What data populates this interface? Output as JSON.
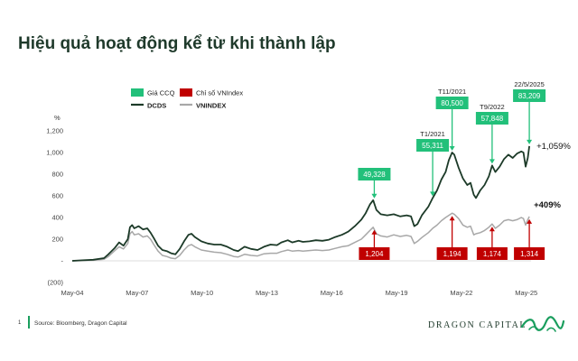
{
  "page": {
    "title": "Hiệu quả hoạt động kể từ khi thành lập",
    "footer_page": "1",
    "source": "Source: Bloomberg, Dragon Capital",
    "brand": "DRAGON CAPITAL"
  },
  "colors": {
    "dcds": "#1c3a28",
    "vnindex": "#a8a8a8",
    "green_box": "#22c07a",
    "red_box": "#c00000",
    "accent": "#1a9e5e"
  },
  "chart_data": {
    "type": "line",
    "ylabel": "%",
    "ylim": [
      -200,
      1200
    ],
    "yticks": [
      {
        "v": 1200,
        "label": "1,200"
      },
      {
        "v": 1000,
        "label": "1,000"
      },
      {
        "v": 800,
        "label": "800"
      },
      {
        "v": 600,
        "label": "600"
      },
      {
        "v": 400,
        "label": "400"
      },
      {
        "v": 200,
        "label": "200"
      },
      {
        "v": 0,
        "label": "-"
      },
      {
        "v": -200,
        "label": "(200)"
      }
    ],
    "xlim": [
      2004.33,
      2025.55
    ],
    "xticks": [
      {
        "v": 2004.33,
        "label": "May-04"
      },
      {
        "v": 2007.33,
        "label": "May-07"
      },
      {
        "v": 2010.33,
        "label": "May-10"
      },
      {
        "v": 2013.33,
        "label": "May-13"
      },
      {
        "v": 2016.33,
        "label": "May-16"
      },
      {
        "v": 2019.33,
        "label": "May-19"
      },
      {
        "v": 2022.33,
        "label": "May-22"
      },
      {
        "v": 2025.33,
        "label": "May-25"
      }
    ],
    "legend": [
      {
        "key": "green_box",
        "label": "Giá CCQ"
      },
      {
        "key": "red_box",
        "label": "Chỉ số VNIndex"
      },
      {
        "key": "dcds",
        "label": "DCDS"
      },
      {
        "key": "vnindex",
        "label": "VNINDEX"
      }
    ],
    "legend_position": "top-left",
    "series": [
      {
        "name": "DCDS",
        "key": "dcds",
        "points": [
          [
            2004.33,
            0
          ],
          [
            2004.8,
            5
          ],
          [
            2005.3,
            10
          ],
          [
            2005.8,
            25
          ],
          [
            2006.0,
            60
          ],
          [
            2006.3,
            120
          ],
          [
            2006.5,
            170
          ],
          [
            2006.7,
            140
          ],
          [
            2006.9,
            200
          ],
          [
            2007.0,
            310
          ],
          [
            2007.1,
            330
          ],
          [
            2007.2,
            300
          ],
          [
            2007.4,
            320
          ],
          [
            2007.6,
            290
          ],
          [
            2007.8,
            300
          ],
          [
            2007.95,
            260
          ],
          [
            2008.1,
            210
          ],
          [
            2008.3,
            140
          ],
          [
            2008.5,
            100
          ],
          [
            2008.7,
            90
          ],
          [
            2008.9,
            70
          ],
          [
            2009.1,
            60
          ],
          [
            2009.3,
            110
          ],
          [
            2009.5,
            180
          ],
          [
            2009.7,
            240
          ],
          [
            2009.85,
            250
          ],
          [
            2010.0,
            220
          ],
          [
            2010.3,
            180
          ],
          [
            2010.6,
            160
          ],
          [
            2010.9,
            150
          ],
          [
            2011.2,
            150
          ],
          [
            2011.5,
            130
          ],
          [
            2011.8,
            100
          ],
          [
            2012.0,
            90
          ],
          [
            2012.3,
            130
          ],
          [
            2012.6,
            110
          ],
          [
            2012.9,
            100
          ],
          [
            2013.2,
            130
          ],
          [
            2013.5,
            150
          ],
          [
            2013.8,
            145
          ],
          [
            2014.0,
            170
          ],
          [
            2014.3,
            190
          ],
          [
            2014.5,
            170
          ],
          [
            2014.8,
            185
          ],
          [
            2015.0,
            175
          ],
          [
            2015.3,
            180
          ],
          [
            2015.6,
            190
          ],
          [
            2015.9,
            185
          ],
          [
            2016.2,
            195
          ],
          [
            2016.5,
            220
          ],
          [
            2016.8,
            240
          ],
          [
            2017.1,
            270
          ],
          [
            2017.4,
            320
          ],
          [
            2017.7,
            380
          ],
          [
            2017.9,
            440
          ],
          [
            2018.1,
            520
          ],
          [
            2018.25,
            560
          ],
          [
            2018.4,
            470
          ],
          [
            2018.6,
            430
          ],
          [
            2018.9,
            420
          ],
          [
            2019.2,
            430
          ],
          [
            2019.5,
            410
          ],
          [
            2019.8,
            420
          ],
          [
            2020.0,
            410
          ],
          [
            2020.15,
            320
          ],
          [
            2020.3,
            340
          ],
          [
            2020.5,
            420
          ],
          [
            2020.8,
            500
          ],
          [
            2021.0,
            580
          ],
          [
            2021.2,
            650
          ],
          [
            2021.4,
            750
          ],
          [
            2021.6,
            820
          ],
          [
            2021.75,
            930
          ],
          [
            2021.9,
            1000
          ],
          [
            2022.0,
            980
          ],
          [
            2022.2,
            860
          ],
          [
            2022.4,
            760
          ],
          [
            2022.6,
            700
          ],
          [
            2022.75,
            720
          ],
          [
            2022.9,
            610
          ],
          [
            2023.0,
            580
          ],
          [
            2023.2,
            650
          ],
          [
            2023.4,
            700
          ],
          [
            2023.6,
            780
          ],
          [
            2023.75,
            880
          ],
          [
            2023.9,
            820
          ],
          [
            2024.1,
            870
          ],
          [
            2024.3,
            940
          ],
          [
            2024.5,
            980
          ],
          [
            2024.7,
            950
          ],
          [
            2024.9,
            990
          ],
          [
            2025.1,
            1010
          ],
          [
            2025.2,
            1000
          ],
          [
            2025.3,
            870
          ],
          [
            2025.4,
            950
          ],
          [
            2025.47,
            1059
          ]
        ]
      },
      {
        "name": "VNINDEX",
        "key": "vnindex",
        "points": [
          [
            2004.33,
            0
          ],
          [
            2004.8,
            2
          ],
          [
            2005.3,
            5
          ],
          [
            2005.8,
            15
          ],
          [
            2006.0,
            40
          ],
          [
            2006.3,
            95
          ],
          [
            2006.5,
            130
          ],
          [
            2006.7,
            110
          ],
          [
            2006.9,
            160
          ],
          [
            2007.0,
            250
          ],
          [
            2007.1,
            270
          ],
          [
            2007.2,
            240
          ],
          [
            2007.4,
            250
          ],
          [
            2007.6,
            220
          ],
          [
            2007.8,
            230
          ],
          [
            2007.95,
            200
          ],
          [
            2008.1,
            150
          ],
          [
            2008.3,
            90
          ],
          [
            2008.5,
            50
          ],
          [
            2008.7,
            40
          ],
          [
            2008.9,
            25
          ],
          [
            2009.1,
            20
          ],
          [
            2009.3,
            50
          ],
          [
            2009.5,
            100
          ],
          [
            2009.7,
            140
          ],
          [
            2009.85,
            150
          ],
          [
            2010.0,
            130
          ],
          [
            2010.3,
            100
          ],
          [
            2010.6,
            90
          ],
          [
            2010.9,
            80
          ],
          [
            2011.2,
            75
          ],
          [
            2011.5,
            60
          ],
          [
            2011.8,
            40
          ],
          [
            2012.0,
            35
          ],
          [
            2012.3,
            60
          ],
          [
            2012.6,
            50
          ],
          [
            2012.9,
            45
          ],
          [
            2013.2,
            65
          ],
          [
            2013.5,
            70
          ],
          [
            2013.8,
            70
          ],
          [
            2014.0,
            85
          ],
          [
            2014.3,
            100
          ],
          [
            2014.5,
            90
          ],
          [
            2014.8,
            95
          ],
          [
            2015.0,
            90
          ],
          [
            2015.3,
            95
          ],
          [
            2015.6,
            100
          ],
          [
            2015.9,
            95
          ],
          [
            2016.2,
            100
          ],
          [
            2016.5,
            115
          ],
          [
            2016.8,
            130
          ],
          [
            2017.1,
            140
          ],
          [
            2017.4,
            170
          ],
          [
            2017.7,
            200
          ],
          [
            2017.9,
            240
          ],
          [
            2018.1,
            280
          ],
          [
            2018.25,
            310
          ],
          [
            2018.4,
            250
          ],
          [
            2018.6,
            230
          ],
          [
            2018.9,
            220
          ],
          [
            2019.2,
            240
          ],
          [
            2019.5,
            225
          ],
          [
            2019.8,
            235
          ],
          [
            2020.0,
            225
          ],
          [
            2020.15,
            160
          ],
          [
            2020.3,
            180
          ],
          [
            2020.5,
            215
          ],
          [
            2020.8,
            260
          ],
          [
            2021.0,
            300
          ],
          [
            2021.2,
            330
          ],
          [
            2021.4,
            370
          ],
          [
            2021.6,
            400
          ],
          [
            2021.75,
            420
          ],
          [
            2021.9,
            440
          ],
          [
            2022.0,
            430
          ],
          [
            2022.2,
            390
          ],
          [
            2022.4,
            330
          ],
          [
            2022.6,
            310
          ],
          [
            2022.75,
            320
          ],
          [
            2022.9,
            240
          ],
          [
            2023.0,
            250
          ],
          [
            2023.2,
            260
          ],
          [
            2023.4,
            280
          ],
          [
            2023.6,
            310
          ],
          [
            2023.75,
            340
          ],
          [
            2023.9,
            300
          ],
          [
            2024.1,
            330
          ],
          [
            2024.3,
            370
          ],
          [
            2024.5,
            380
          ],
          [
            2024.7,
            370
          ],
          [
            2024.9,
            380
          ],
          [
            2025.1,
            400
          ],
          [
            2025.2,
            390
          ],
          [
            2025.3,
            330
          ],
          [
            2025.4,
            380
          ],
          [
            2025.47,
            409
          ]
        ]
      }
    ],
    "end_labels": [
      {
        "key": "dcds",
        "text": "+1,059%",
        "y": 1059
      },
      {
        "key": "vnindex",
        "text": "+409%",
        "y": 409
      }
    ],
    "callouts_green": [
      {
        "value": "49,328",
        "x": 2018.3,
        "y": 560
      },
      {
        "value": "55,311",
        "x": 2021.0,
        "y": 580,
        "label": "T1/2021"
      },
      {
        "value": "80,500",
        "x": 2021.9,
        "y": 1000,
        "label": "T11/2021"
      },
      {
        "value": "57,848",
        "x": 2023.75,
        "y": 880,
        "label": "T9/2022"
      },
      {
        "value": "83,209",
        "x": 2025.47,
        "y": 1059,
        "label": "22/5/2025"
      }
    ],
    "callouts_red": [
      {
        "value": "1,204",
        "x": 2018.3,
        "y": 310
      },
      {
        "value": "1,194",
        "x": 2021.9,
        "y": 440
      },
      {
        "value": "1,174",
        "x": 2023.75,
        "y": 340
      },
      {
        "value": "1,314",
        "x": 2025.47,
        "y": 409
      }
    ]
  }
}
